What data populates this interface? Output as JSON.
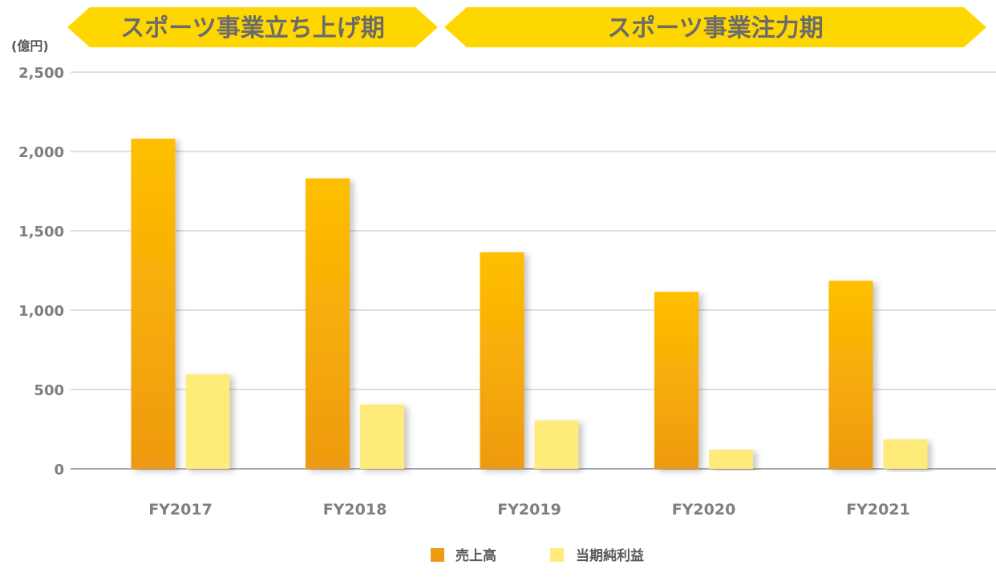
{
  "banners": [
    {
      "label": "スポーツ事業立ち上げ期"
    },
    {
      "label": "スポーツ事業注力期"
    }
  ],
  "colors": {
    "sales_top": "#ffbf00",
    "sales_bottom": "#ee9a12",
    "profit": "#ffeb7a",
    "banner": "#ffd700",
    "grid": "#bfbfbf",
    "axis": "#8c8c8c",
    "text": "#7f7f7f"
  },
  "chart_data": {
    "type": "bar",
    "unit_label": "(億円)",
    "categories": [
      "FY2017",
      "FY2018",
      "FY2019",
      "FY2020",
      "FY2021"
    ],
    "series": [
      {
        "name": "売上高",
        "values": [
          2080,
          1830,
          1365,
          1115,
          1185
        ]
      },
      {
        "name": "当期純利益",
        "values": [
          595,
          405,
          305,
          120,
          185
        ]
      }
    ],
    "ylim": [
      0,
      2500
    ],
    "yticks": [
      0,
      500,
      1000,
      1500,
      2000,
      2500
    ],
    "ytick_labels": [
      "0",
      "500",
      "1,000",
      "1,500",
      "2,000",
      "2,500"
    ],
    "grid": true,
    "legend": "bottom-center"
  }
}
